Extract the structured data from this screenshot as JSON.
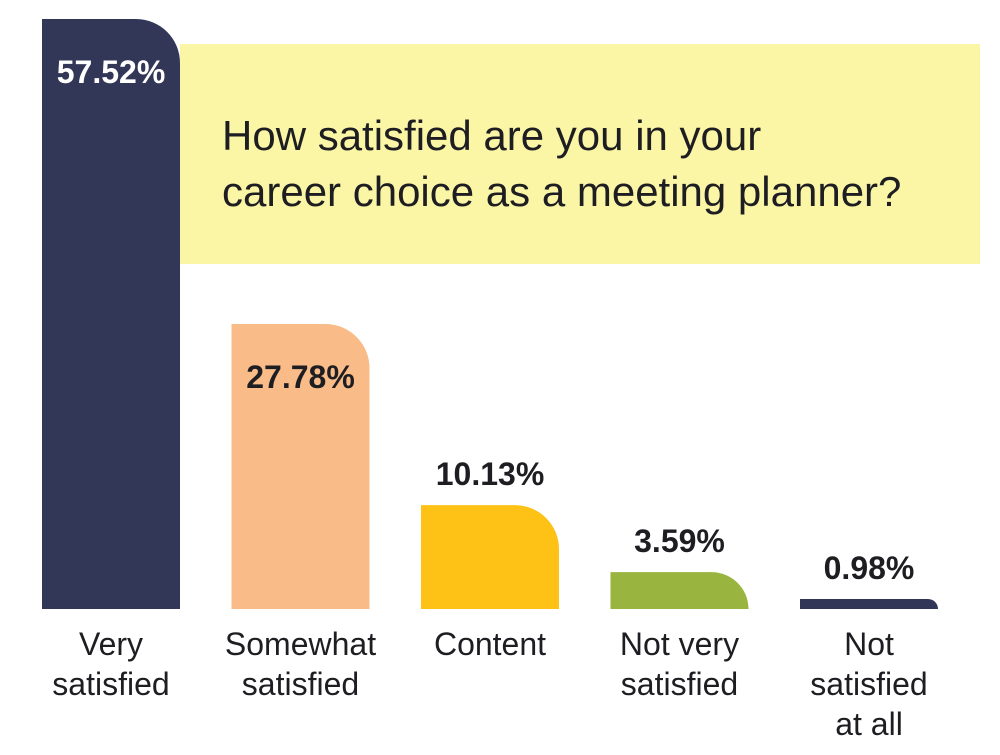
{
  "chart_data": {
    "type": "bar",
    "title_lines": [
      "How satisfied are you in your",
      "career choice as a meeting planner?"
    ],
    "categories": [
      "Very satisfied",
      "Somewhat satisfied",
      "Content",
      "Not very satisfied",
      "Not satisfied at all"
    ],
    "category_lines": [
      [
        "Very",
        "satisfied"
      ],
      [
        "Somewhat",
        "satisfied"
      ],
      [
        "Content"
      ],
      [
        "Not very",
        "satisfied"
      ],
      [
        "Not",
        "satisfied",
        "at all"
      ]
    ],
    "values": [
      57.52,
      27.78,
      10.13,
      3.59,
      0.98
    ],
    "value_labels": [
      "57.52%",
      "27.78%",
      "10.13%",
      "3.59%",
      "0.98%"
    ],
    "colors": [
      "#323758",
      "#f9bc88",
      "#fdc215",
      "#9ab53f",
      "#323758"
    ],
    "label_colors": [
      "#ffffff",
      "#1e1e22",
      "#1e1e22",
      "#1e1e22",
      "#1e1e22"
    ],
    "label_position": [
      "inside",
      "inside",
      "above",
      "above",
      "above"
    ],
    "xlabel": "",
    "ylabel": "",
    "grid": false,
    "legend": "none"
  }
}
